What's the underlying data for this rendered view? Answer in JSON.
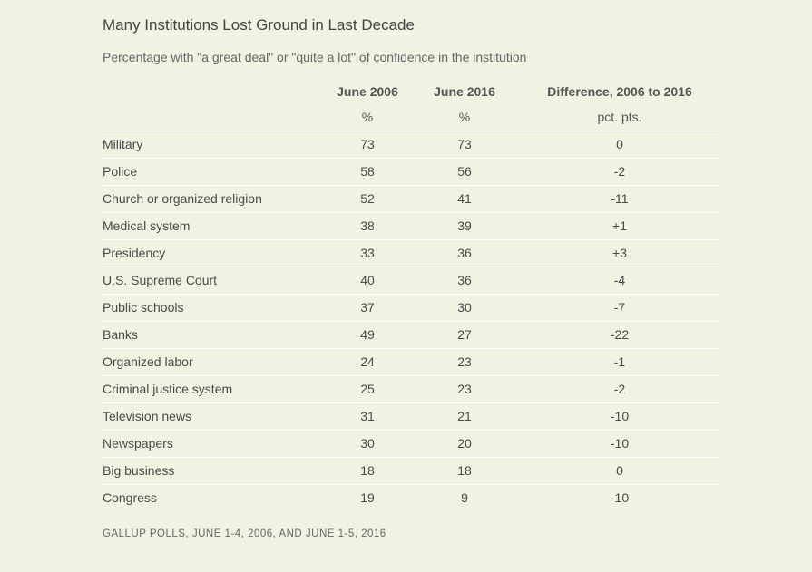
{
  "title": "Many Institutions Lost Ground in Last Decade",
  "subtitle": "Percentage with \"a great deal\" or \"quite a lot\" of confidence in the institution",
  "columns": {
    "y2006": "June 2006",
    "y2016": "June 2016",
    "diff": "Difference, 2006 to 2016"
  },
  "units": {
    "y2006": "%",
    "y2016": "%",
    "diff": "pct. pts."
  },
  "rows": [
    {
      "name": "Military",
      "y2006": "73",
      "y2016": "73",
      "diff": "0"
    },
    {
      "name": "Police",
      "y2006": "58",
      "y2016": "56",
      "diff": "-2"
    },
    {
      "name": "Church or organized religion",
      "y2006": "52",
      "y2016": "41",
      "diff": "-11"
    },
    {
      "name": "Medical system",
      "y2006": "38",
      "y2016": "39",
      "diff": "+1"
    },
    {
      "name": "Presidency",
      "y2006": "33",
      "y2016": "36",
      "diff": "+3"
    },
    {
      "name": "U.S. Supreme Court",
      "y2006": "40",
      "y2016": "36",
      "diff": "-4"
    },
    {
      "name": "Public schools",
      "y2006": "37",
      "y2016": "30",
      "diff": "-7"
    },
    {
      "name": "Banks",
      "y2006": "49",
      "y2016": "27",
      "diff": "-22"
    },
    {
      "name": "Organized labor",
      "y2006": "24",
      "y2016": "23",
      "diff": "-1"
    },
    {
      "name": "Criminal justice system",
      "y2006": "25",
      "y2016": "23",
      "diff": "-2"
    },
    {
      "name": "Television news",
      "y2006": "31",
      "y2016": "21",
      "diff": "-10"
    },
    {
      "name": "Newspapers",
      "y2006": "30",
      "y2016": "20",
      "diff": "-10"
    },
    {
      "name": "Big business",
      "y2006": "18",
      "y2016": "18",
      "diff": "0"
    },
    {
      "name": "Congress",
      "y2006": "19",
      "y2016": "9",
      "diff": "-10"
    }
  ],
  "source": "GALLUP POLLS, JUNE 1-4, 2006, AND JUNE 1-5, 2016"
}
